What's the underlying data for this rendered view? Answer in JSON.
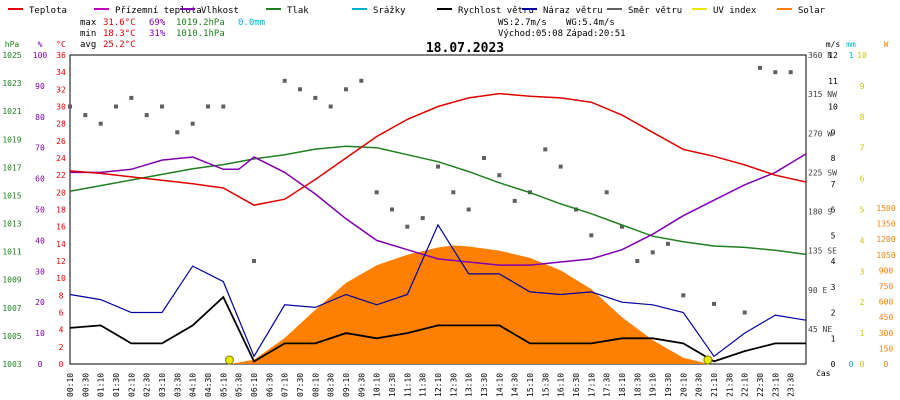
{
  "chart_data": {
    "type": "line",
    "title": "18.07.2023",
    "legend": [
      {
        "label": "Teplota",
        "color": "#e00000"
      },
      {
        "label": "Přízemní teplota",
        "color": "#c000c0"
      },
      {
        "label": "Vlhkost",
        "color": "#8000b0"
      },
      {
        "label": "Tlak",
        "color": "#208020"
      },
      {
        "label": "Srážky",
        "color": "#00b0d0"
      },
      {
        "label": "Rychlost větru",
        "color": "#000000"
      },
      {
        "label": "Náraz větru",
        "color": "#0000a0"
      },
      {
        "label": "Směr větru",
        "color": "#606060"
      },
      {
        "label": "UV index",
        "color": "#e8e800"
      },
      {
        "label": "Solar",
        "color": "#ff8000"
      }
    ],
    "stats": {
      "max_label": "max",
      "max_temp": "31.6°C",
      "max_hum": "69%",
      "max_press": "1019.2hPa",
      "rain": "0.0mm",
      "min_label": "min",
      "min_temp": "18.3°C",
      "min_hum": "31%",
      "min_press": "1010.1hPa",
      "avg_label": "avg",
      "avg_temp": "25.2°C",
      "ws": "WS:2.7m/s",
      "wg": "WG:5.4m/s",
      "sunrise": "Východ:05:08",
      "sunset": "Západ:20:51"
    },
    "axes": {
      "hpa": {
        "label": "hPa",
        "ticks": [
          "1025",
          "1023",
          "1021",
          "1019",
          "1017",
          "1015",
          "1013",
          "1011",
          "1009",
          "1007",
          "1005",
          "1003"
        ],
        "color": "#208020"
      },
      "pct": {
        "label": "%",
        "ticks": [
          "100",
          "90",
          "80",
          "70",
          "60",
          "50",
          "40",
          "30",
          "20",
          "10",
          "0"
        ],
        "color": "#8000b0"
      },
      "degc": {
        "label": "°C",
        "ticks": [
          "36",
          "34",
          "32",
          "30",
          "28",
          "26",
          "24",
          "22",
          "20",
          "18",
          "16",
          "14",
          "12",
          "10",
          "8",
          "6",
          "4",
          "2",
          "0"
        ],
        "color": "#e00000"
      },
      "dir": {
        "ticks": [
          "360 N",
          "315 NW",
          "270 W",
          "225 SW",
          "180 S",
          "135 SE",
          "90 E",
          "45 NE"
        ],
        "color": "#404040"
      },
      "ms": {
        "label": "m/s",
        "ticks": [
          "12",
          "11",
          "10",
          "9",
          "8",
          "7",
          "6",
          "5",
          "4",
          "3",
          "2",
          "1",
          "0"
        ],
        "color": "#000000"
      },
      "mm": {
        "label": "mm",
        "ticks": [
          "1",
          "0"
        ],
        "color": "#00b0d0"
      },
      "uv": {
        "ticks": [
          "10",
          "9",
          "8",
          "7",
          "6",
          "5",
          "4",
          "3",
          "2",
          "1",
          "0"
        ],
        "color": "#c8c800"
      },
      "w": {
        "label": "W",
        "ticks": [
          "1500",
          "1350",
          "1200",
          "1050",
          "900",
          "750",
          "600",
          "450",
          "300",
          "150",
          "0"
        ],
        "color": "#ff8000"
      },
      "x_label": "čas",
      "x_ticks": [
        "00:10",
        "00:30",
        "01:10",
        "01:30",
        "02:10",
        "02:30",
        "03:10",
        "03:30",
        "04:10",
        "04:30",
        "05:10",
        "05:30",
        "06:10",
        "06:30",
        "07:10",
        "07:30",
        "08:10",
        "08:30",
        "09:10",
        "09:30",
        "10:10",
        "10:30",
        "11:10",
        "11:30",
        "12:10",
        "12:30",
        "13:10",
        "13:30",
        "14:10",
        "14:30",
        "15:10",
        "15:30",
        "16:10",
        "16:30",
        "17:10",
        "17:30",
        "18:10",
        "18:30",
        "19:10",
        "19:30",
        "20:10",
        "20:30",
        "21:10",
        "21:30",
        "22:10",
        "22:30",
        "23:10",
        "23:30"
      ]
    },
    "series": [
      {
        "name": "Teplota",
        "unit": "°C",
        "x_hours": [
          0,
          1,
          2,
          3,
          4,
          5,
          6,
          7,
          8,
          9,
          10,
          11,
          12,
          13,
          14,
          15,
          16,
          17,
          18,
          19,
          20,
          21,
          22,
          23,
          24
        ],
        "values": [
          22.5,
          22.2,
          21.8,
          21.4,
          21.0,
          20.5,
          18.5,
          19.2,
          21.5,
          24.0,
          26.5,
          28.5,
          30.0,
          31.0,
          31.5,
          31.2,
          31.0,
          30.5,
          29.0,
          27.0,
          25.0,
          24.2,
          23.2,
          22.0,
          21.2
        ]
      },
      {
        "name": "Vlhkost",
        "unit": "%",
        "x_hours": [
          0,
          1,
          2,
          3,
          4,
          5,
          5.5,
          6,
          7,
          8,
          9,
          10,
          11,
          12,
          13,
          14,
          15,
          16,
          17,
          18,
          19,
          20,
          21,
          22,
          23,
          24
        ],
        "values": [
          62,
          62,
          63,
          66,
          67,
          63,
          63,
          67,
          62,
          55,
          47,
          40,
          37,
          34,
          33,
          32,
          32,
          33,
          34,
          37,
          42,
          48,
          53,
          58,
          62,
          68
        ]
      },
      {
        "name": "Tlak",
        "unit": "hPa",
        "x_hours": [
          0,
          1,
          2,
          3,
          4,
          5,
          6,
          7,
          8,
          9,
          10,
          11,
          12,
          13,
          14,
          15,
          16,
          17,
          18,
          19,
          20,
          21,
          22,
          23,
          24
        ],
        "values": [
          1015.3,
          1015.7,
          1016.1,
          1016.5,
          1016.9,
          1017.2,
          1017.6,
          1017.9,
          1018.3,
          1018.5,
          1018.4,
          1017.9,
          1017.4,
          1016.7,
          1015.9,
          1015.2,
          1014.4,
          1013.7,
          1012.9,
          1012.1,
          1011.7,
          1011.4,
          1011.3,
          1011.1,
          1010.8
        ]
      },
      {
        "name": "Rychlost větru",
        "unit": "m/s",
        "x_hours": [
          0,
          1,
          2,
          3,
          4,
          5,
          6,
          7,
          8,
          9,
          10,
          11,
          12,
          13,
          14,
          15,
          16,
          17,
          18,
          19,
          20,
          21,
          22,
          23,
          24
        ],
        "values": [
          1.4,
          1.5,
          0.8,
          0.8,
          1.5,
          2.6,
          0.1,
          0.8,
          0.8,
          1.2,
          1.0,
          1.2,
          1.5,
          1.5,
          1.5,
          0.8,
          0.8,
          0.8,
          1.0,
          1.0,
          0.8,
          0.1,
          0.5,
          0.8,
          0.8
        ]
      },
      {
        "name": "Náraz větru",
        "unit": "m/s",
        "x_hours": [
          0,
          1,
          2,
          3,
          4,
          5,
          6,
          7,
          8,
          9,
          10,
          11,
          12,
          13,
          14,
          15,
          16,
          17,
          18,
          19,
          20,
          21,
          22,
          23,
          24
        ],
        "values": [
          2.7,
          2.5,
          2.0,
          2.0,
          3.8,
          3.2,
          0.3,
          2.3,
          2.2,
          2.7,
          2.3,
          2.7,
          5.4,
          3.5,
          3.5,
          2.8,
          2.7,
          2.8,
          2.4,
          2.3,
          2.0,
          0.3,
          1.2,
          1.9,
          1.7
        ]
      },
      {
        "name": "Směr větru",
        "unit": "°",
        "x_hours": [
          0,
          0.5,
          1,
          1.5,
          2,
          2.5,
          3,
          3.5,
          4,
          4.5,
          5,
          6,
          7,
          7.5,
          8,
          8.5,
          9,
          9.5,
          10,
          10.5,
          11,
          11.5,
          12,
          12.5,
          13,
          13.5,
          14,
          14.5,
          15,
          15.5,
          16,
          16.5,
          17,
          17.5,
          18,
          18.5,
          19,
          19.5,
          20,
          21,
          22,
          22.5,
          23,
          23.5
        ],
        "values": [
          300,
          290,
          280,
          300,
          310,
          290,
          300,
          270,
          280,
          300,
          300,
          120,
          330,
          320,
          310,
          300,
          320,
          330,
          200,
          180,
          160,
          170,
          230,
          200,
          180,
          240,
          220,
          190,
          200,
          250,
          230,
          180,
          150,
          200,
          160,
          120,
          130,
          140,
          80,
          70,
          60,
          345,
          340,
          340
        ]
      },
      {
        "name": "Solar",
        "unit": "W",
        "x_hours": [
          5.2,
          6,
          7,
          8,
          9,
          10,
          11,
          12,
          12.5,
          13,
          14,
          15,
          16,
          17,
          18,
          19,
          20,
          20.85
        ],
        "values": [
          0,
          40,
          250,
          520,
          780,
          950,
          1050,
          1120,
          1140,
          1130,
          1090,
          1020,
          900,
          720,
          450,
          230,
          60,
          0
        ]
      },
      {
        "name": "UV index",
        "unit": "",
        "x_hours": [
          5.2,
          20.8
        ],
        "values": [
          0,
          0
        ]
      }
    ]
  }
}
